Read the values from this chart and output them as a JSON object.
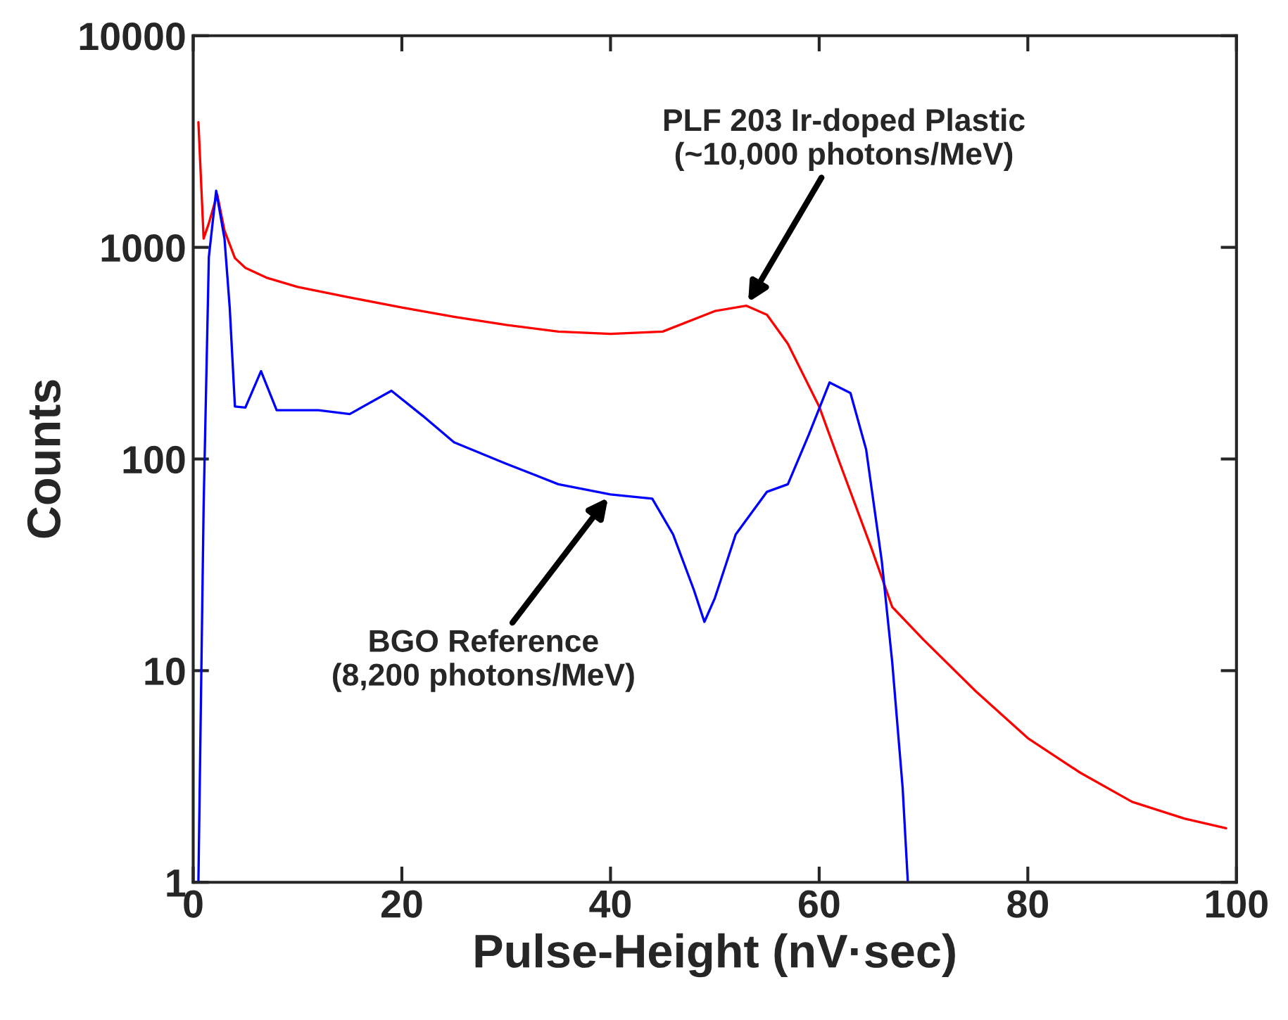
{
  "chart_data": {
    "type": "line",
    "xlabel": "Pulse-Height (nV·sec)",
    "ylabel": "Counts",
    "log": "y",
    "xlim": [
      0,
      100
    ],
    "ylim": [
      1,
      10000
    ],
    "xticks": [
      0,
      20,
      40,
      60,
      80,
      100
    ],
    "yticks": [
      1,
      10,
      100,
      1000,
      10000
    ],
    "grid": false,
    "legend": false,
    "marker": "none",
    "line_style": "solid",
    "series": [
      {
        "color": "#ff0000",
        "x": [
          0.5,
          1.0,
          1.5,
          2.3,
          3.0,
          4,
          5,
          7,
          10,
          15,
          20,
          25,
          30,
          35,
          40,
          45,
          50,
          53,
          55,
          57,
          60,
          62,
          65,
          67,
          70,
          75,
          80,
          85,
          90,
          95,
          99
        ],
        "values": [
          3900,
          1100,
          1300,
          1780,
          1200,
          890,
          800,
          720,
          650,
          580,
          520,
          470,
          430,
          400,
          390,
          400,
          500,
          530,
          480,
          350,
          177,
          95,
          38,
          20,
          14,
          8,
          4.8,
          3.3,
          2.4,
          2,
          1.8
        ]
      },
      {
        "color": "#0000ff",
        "x": [
          0.5,
          1.0,
          1.5,
          2.2,
          3.0,
          3.5,
          4,
          5,
          6.5,
          8,
          12,
          15,
          19,
          22,
          25,
          30,
          35,
          40,
          44,
          46,
          48,
          49,
          50,
          52,
          55,
          57,
          59,
          61,
          63,
          64.5,
          66,
          67,
          68,
          68.5
        ],
        "values": [
          1,
          60,
          900,
          1850,
          1100,
          520,
          177,
          175,
          260,
          170,
          170,
          163,
          210,
          160,
          120,
          95,
          76,
          68,
          65,
          44,
          24,
          17,
          22,
          44,
          70,
          76,
          130,
          230,
          205,
          111,
          33,
          11,
          2.8,
          1
        ]
      }
    ],
    "annotations": [
      {
        "text": "PLF 203 Ir-doped Plastic\n(~10,000 photons/MeV)",
        "x": 53,
        "y": 530
      },
      {
        "text": "BGO Reference\n(8,200 photons/MeV)",
        "x": 40,
        "y": 68
      }
    ]
  }
}
